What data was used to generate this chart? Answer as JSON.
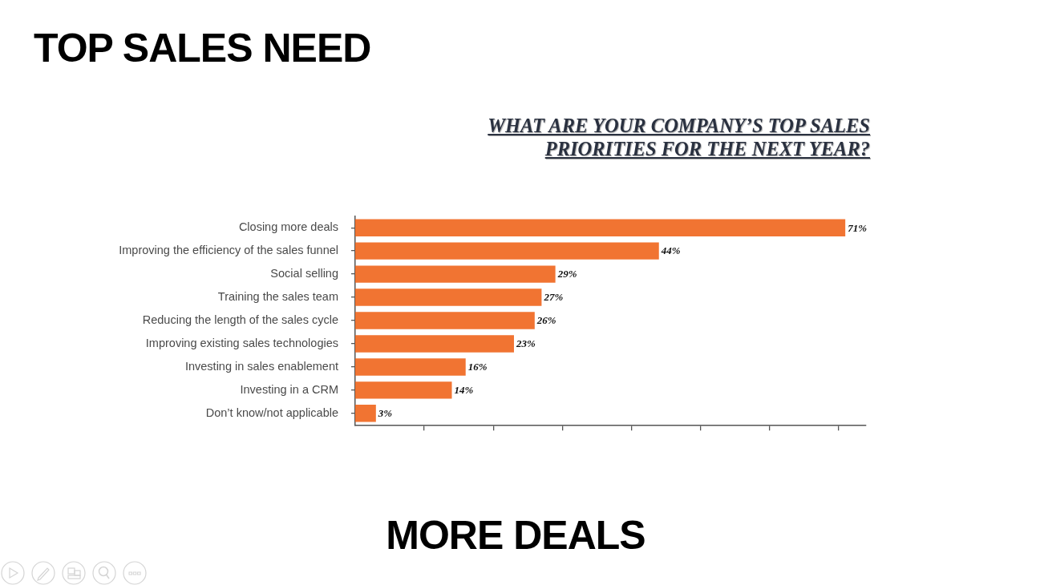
{
  "chart_data": {
    "type": "bar",
    "orientation": "horizontal",
    "title": "TOP SALES NEED",
    "subtitle": "WHAT ARE YOUR COMPANY’S TOP SALES PRIORITIES FOR THE NEXT YEAR?",
    "annotations": [
      "MORE DEALS"
    ],
    "categories": [
      "Closing more deals",
      "Improving the efficiency of the sales funnel",
      "Social selling",
      "Training the sales team",
      "Reducing the length of the sales cycle",
      "Improving existing sales technologies",
      "Investing in sales enablement",
      "Investing in a CRM",
      "Don’t know/not applicable"
    ],
    "values": [
      71,
      44,
      29,
      27,
      26,
      23,
      16,
      14,
      3
    ],
    "value_labels": [
      "71%",
      "44%",
      "29%",
      "27%",
      "26%",
      "23%",
      "16%",
      "14%",
      "3%"
    ],
    "color": "#f17432",
    "xlim": [
      0,
      74
    ],
    "xticks": [
      {
        "value": 10,
        "label": null
      },
      {
        "value": 20,
        "label": null
      },
      {
        "value": 30,
        "label": null
      },
      {
        "value": 40,
        "label": null
      },
      {
        "value": 50,
        "label": null
      },
      {
        "value": 60,
        "label": null
      },
      {
        "value": 70,
        "label": null
      }
    ],
    "tick_labels": "y"
  }
}
